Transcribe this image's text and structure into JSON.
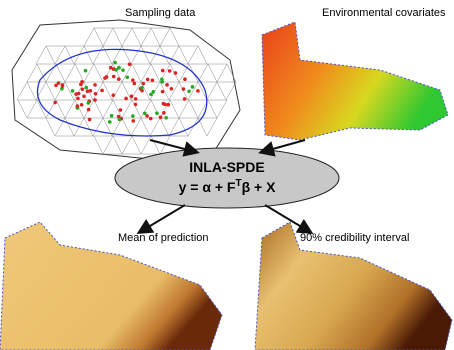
{
  "panels": {
    "sampling": "Sampling data",
    "covariates": "Environmental covariates",
    "mean": "Mean of prediction",
    "interval": "90% credibility interval"
  },
  "model": {
    "name": "INLA-SPDE",
    "equation": {
      "before": "y = α + F",
      "superscript": "T",
      "after": "β + X"
    }
  }
}
